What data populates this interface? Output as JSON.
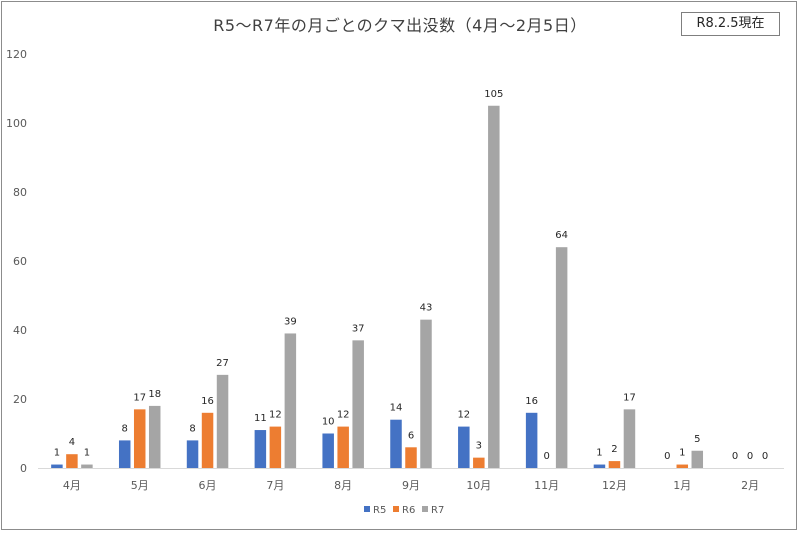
{
  "chart_data": {
    "type": "bar",
    "title": "R5～R7年の月ごとのクマ出没数（4月～2月5日）",
    "note": "R8.2.5現在",
    "categories": [
      "4月",
      "5月",
      "6月",
      "7月",
      "8月",
      "9月",
      "10月",
      "11月",
      "12月",
      "1月",
      "2月"
    ],
    "series": [
      {
        "name": "R5",
        "color": "#4472C4",
        "values": [
          1,
          8,
          8,
          11,
          10,
          14,
          12,
          16,
          1,
          0,
          0
        ]
      },
      {
        "name": "R6",
        "color": "#ED7D31",
        "values": [
          4,
          17,
          16,
          12,
          12,
          6,
          3,
          0,
          2,
          1,
          0
        ]
      },
      {
        "name": "R7",
        "color": "#A5A5A5",
        "values": [
          1,
          18,
          27,
          39,
          37,
          43,
          105,
          64,
          17,
          5,
          0
        ]
      }
    ],
    "yticks": [
      0,
      20,
      40,
      60,
      80,
      100,
      120
    ],
    "ylim": [
      0,
      120
    ],
    "gridlines": false,
    "legend_position": "bottom"
  }
}
